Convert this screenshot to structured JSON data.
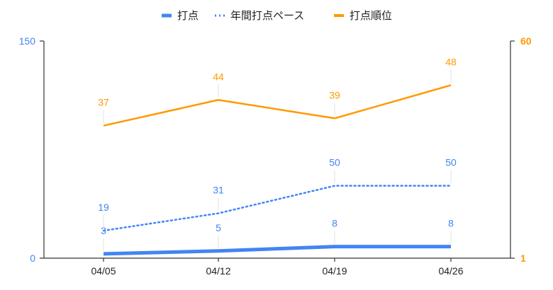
{
  "chart_data": {
    "type": "line",
    "categories": [
      "04/05",
      "04/12",
      "04/19",
      "04/26"
    ],
    "axes": {
      "left": {
        "min": 0,
        "max": 150,
        "ticks": [
          "0",
          "150"
        ],
        "color": "#4285f4"
      },
      "right": {
        "min": 1,
        "max": 60,
        "ticks": [
          "1",
          "60"
        ],
        "color": "#ff9900"
      }
    },
    "series": [
      {
        "name": "打点",
        "values": [
          3,
          5,
          8,
          8
        ],
        "labels": [
          "3",
          "5",
          "8",
          "8"
        ],
        "axis": "left",
        "style": "solid-thick",
        "color": "#4285f4"
      },
      {
        "name": "年間打点ペース",
        "values": [
          19,
          31,
          50,
          50
        ],
        "labels": [
          "19",
          "31",
          "50",
          "50"
        ],
        "axis": "left",
        "style": "dotted",
        "color": "#4285f4"
      },
      {
        "name": "打点順位",
        "values": [
          37,
          44,
          39,
          48
        ],
        "labels": [
          "37",
          "44",
          "39",
          "48"
        ],
        "axis": "right",
        "style": "solid",
        "color": "#ff9900"
      }
    ],
    "legend": {
      "position": "top"
    },
    "grid": false
  }
}
